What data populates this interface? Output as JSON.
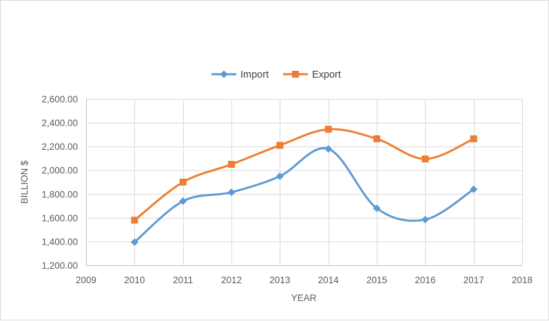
{
  "chart_data": {
    "type": "line",
    "title": "",
    "xlabel": "YEAR",
    "ylabel": "BILLION $",
    "xlim": [
      2009,
      2018
    ],
    "ylim": [
      1200,
      2600
    ],
    "x_ticks": [
      2009,
      2010,
      2011,
      2012,
      2013,
      2014,
      2015,
      2016,
      2017,
      2018
    ],
    "y_ticks": [
      1200,
      1400,
      1600,
      1800,
      2000,
      2200,
      2400,
      2600
    ],
    "y_tick_labels": [
      "1,200.00",
      "1,400.00",
      "1,600.00",
      "1,800.00",
      "2,000.00",
      "2,200.00",
      "2,400.00",
      "2,600.00"
    ],
    "grid": true,
    "smooth": true,
    "legend_position": "top",
    "x": [
      2010,
      2011,
      2012,
      2013,
      2014,
      2015,
      2016,
      2017
    ],
    "series": [
      {
        "name": "Import",
        "color": "#5B9BD5",
        "marker": "diamond",
        "values": [
          1395,
          1740,
          1815,
          1950,
          2180,
          1680,
          1585,
          1840
        ]
      },
      {
        "name": "Export",
        "color": "#ED7D31",
        "marker": "square",
        "values": [
          1580,
          1900,
          2050,
          2210,
          2345,
          2265,
          2095,
          2265
        ]
      }
    ]
  }
}
